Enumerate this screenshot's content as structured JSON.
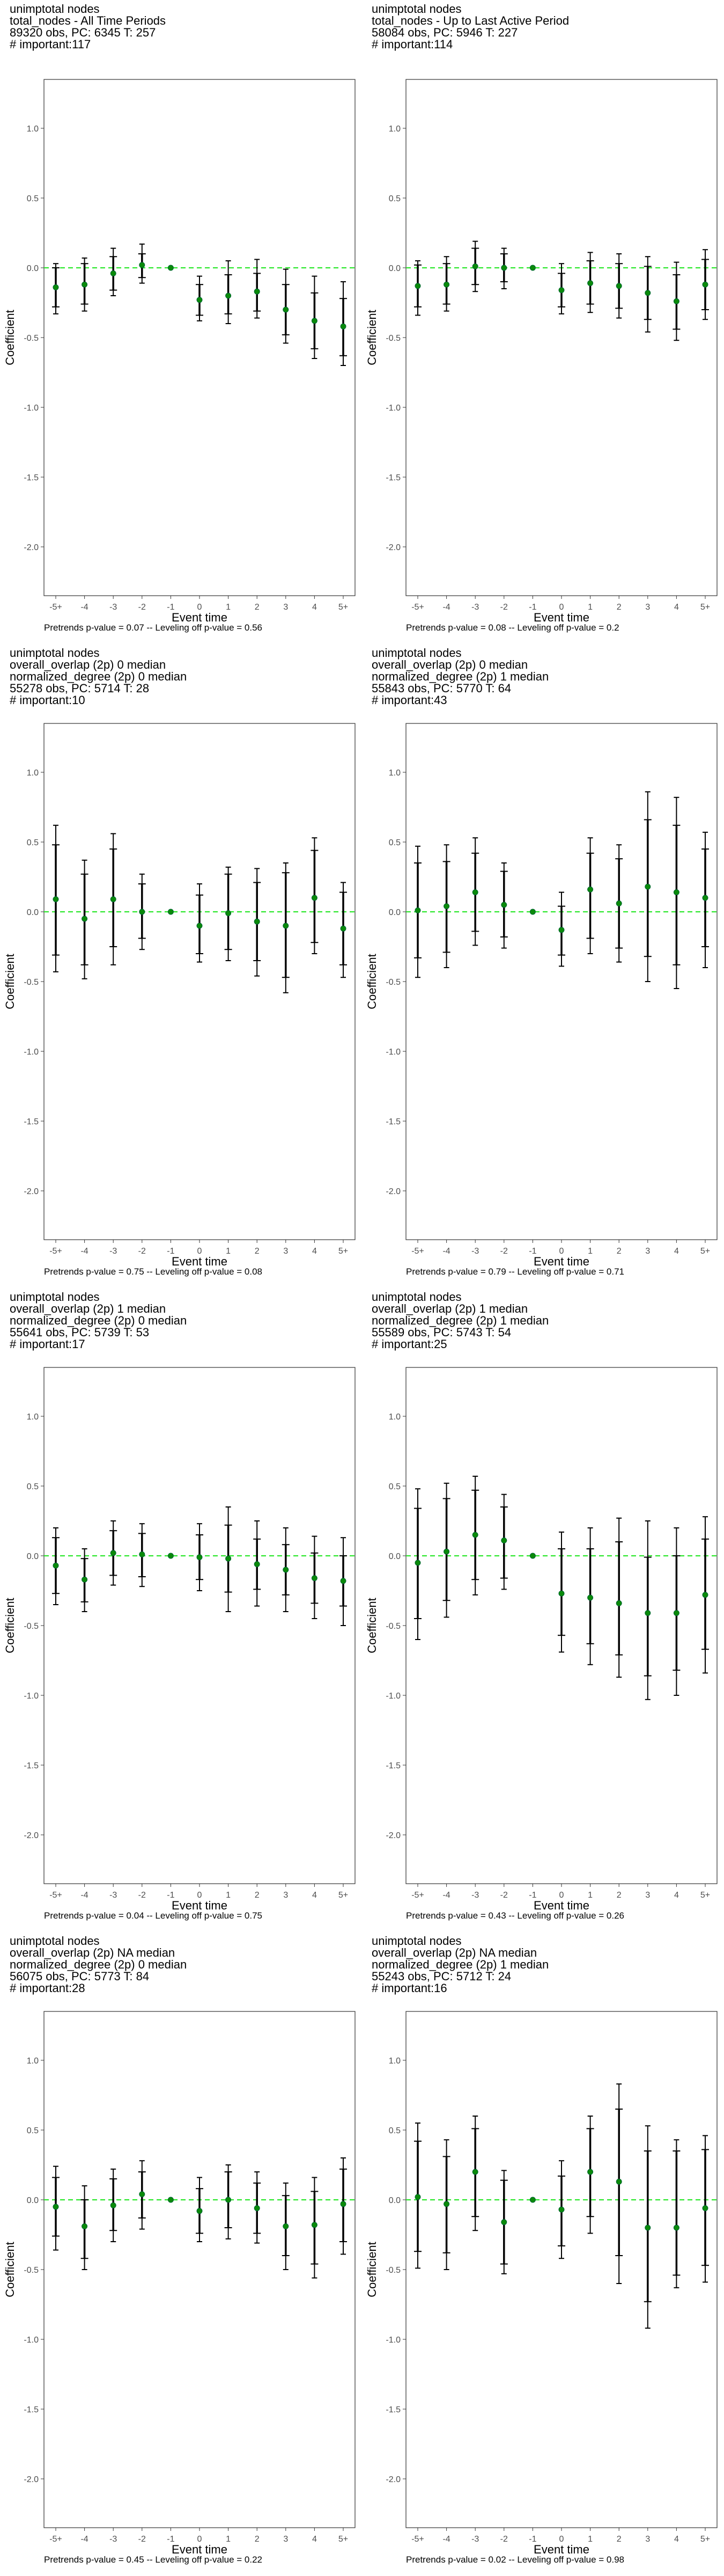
{
  "chart_data": [
    {
      "type": "scatter",
      "title": [
        "unimptotal nodes",
        "total_nodes - All Time Periods",
        "89320 obs, PC: 6345 T: 257",
        "# important:117"
      ],
      "xlabel": "Event time",
      "ylabel": "Coefficient",
      "categories": [
        "-5+",
        "-4",
        "-3",
        "-2",
        "-1",
        "0",
        "1",
        "2",
        "3",
        "4",
        "5+"
      ],
      "yticks": [
        "1.0",
        "0.5",
        "0.0",
        "-0.5",
        "-1.0",
        "-1.5",
        "-2.0"
      ],
      "ylim": [
        -2.35,
        1.35
      ],
      "points": [
        -0.14,
        -0.12,
        -0.04,
        0.02,
        0,
        -0.23,
        -0.2,
        -0.17,
        -0.3,
        -0.38,
        -0.42
      ],
      "inner": [
        [
          -0.28,
          0.0
        ],
        [
          -0.26,
          0.03
        ],
        [
          -0.16,
          0.08
        ],
        [
          -0.07,
          0.1
        ],
        [
          0,
          0
        ],
        [
          -0.34,
          -0.12
        ],
        [
          -0.33,
          -0.05
        ],
        [
          -0.31,
          -0.04
        ],
        [
          -0.48,
          -0.12
        ],
        [
          -0.58,
          -0.18
        ],
        [
          -0.63,
          -0.22
        ]
      ],
      "outer": [
        [
          -0.33,
          0.03
        ],
        [
          -0.31,
          0.07
        ],
        [
          -0.2,
          0.14
        ],
        [
          -0.11,
          0.17
        ],
        [
          0,
          0
        ],
        [
          -0.38,
          -0.06
        ],
        [
          -0.4,
          0.05
        ],
        [
          -0.36,
          0.06
        ],
        [
          -0.54,
          -0.01
        ],
        [
          -0.65,
          -0.06
        ],
        [
          -0.7,
          -0.1
        ]
      ],
      "footnote": "Pretrends p-value = 0.07 -- Leveling off p-value = 0.56"
    },
    {
      "type": "scatter",
      "title": [
        "unimptotal nodes",
        "total_nodes - Up to Last Active Period",
        "58084 obs, PC: 5946 T: 227",
        "# important:114"
      ],
      "xlabel": "Event time",
      "ylabel": "Coefficient",
      "categories": [
        "-5+",
        "-4",
        "-3",
        "-2",
        "-1",
        "0",
        "1",
        "2",
        "3",
        "4",
        "5+"
      ],
      "yticks": [
        "1.0",
        "0.5",
        "0.0",
        "-0.5",
        "-1.0",
        "-1.5",
        "-2.0"
      ],
      "ylim": [
        -2.35,
        1.35
      ],
      "points": [
        -0.13,
        -0.12,
        0.01,
        0.0,
        0,
        -0.16,
        -0.11,
        -0.13,
        -0.18,
        -0.24,
        -0.12
      ],
      "inner": [
        [
          -0.28,
          0.02
        ],
        [
          -0.26,
          0.03
        ],
        [
          -0.12,
          0.14
        ],
        [
          -0.1,
          0.1
        ],
        [
          0,
          0
        ],
        [
          -0.28,
          -0.04
        ],
        [
          -0.26,
          0.05
        ],
        [
          -0.29,
          0.03
        ],
        [
          -0.37,
          0.01
        ],
        [
          -0.44,
          -0.05
        ],
        [
          -0.3,
          0.06
        ]
      ],
      "outer": [
        [
          -0.34,
          0.05
        ],
        [
          -0.31,
          0.08
        ],
        [
          -0.17,
          0.19
        ],
        [
          -0.15,
          0.14
        ],
        [
          0,
          0
        ],
        [
          -0.33,
          0.03
        ],
        [
          -0.32,
          0.11
        ],
        [
          -0.36,
          0.1
        ],
        [
          -0.46,
          0.08
        ],
        [
          -0.52,
          0.04
        ],
        [
          -0.37,
          0.13
        ]
      ],
      "footnote": "Pretrends p-value = 0.08 -- Leveling off p-value = 0.2"
    },
    {
      "type": "scatter",
      "title": [
        "unimptotal nodes",
        "overall_overlap (2p) 0 median",
        "normalized_degree (2p) 0 median",
        "55278 obs, PC: 5714 T: 28",
        "# important:10"
      ],
      "xlabel": "Event time",
      "ylabel": "Coefficient",
      "categories": [
        "-5+",
        "-4",
        "-3",
        "-2",
        "-1",
        "0",
        "1",
        "2",
        "3",
        "4",
        "5+"
      ],
      "yticks": [
        "1.0",
        "0.5",
        "0.0",
        "-0.5",
        "-1.0",
        "-1.5",
        "-2.0"
      ],
      "ylim": [
        -2.35,
        1.35
      ],
      "points": [
        0.09,
        -0.05,
        0.09,
        0.0,
        0,
        -0.1,
        -0.01,
        -0.07,
        -0.1,
        0.1,
        -0.12
      ],
      "inner": [
        [
          -0.31,
          0.48
        ],
        [
          -0.38,
          0.27
        ],
        [
          -0.25,
          0.45
        ],
        [
          -0.19,
          0.2
        ],
        [
          0,
          0
        ],
        [
          -0.3,
          0.12
        ],
        [
          -0.27,
          0.27
        ],
        [
          -0.35,
          0.21
        ],
        [
          -0.47,
          0.28
        ],
        [
          -0.22,
          0.44
        ],
        [
          -0.38,
          0.14
        ]
      ],
      "outer": [
        [
          -0.43,
          0.62
        ],
        [
          -0.48,
          0.37
        ],
        [
          -0.38,
          0.56
        ],
        [
          -0.27,
          0.27
        ],
        [
          0,
          0
        ],
        [
          -0.36,
          0.2
        ],
        [
          -0.35,
          0.32
        ],
        [
          -0.46,
          0.31
        ],
        [
          -0.58,
          0.35
        ],
        [
          -0.3,
          0.53
        ],
        [
          -0.47,
          0.21
        ]
      ],
      "footnote": "Pretrends p-value = 0.75 -- Leveling off p-value = 0.08"
    },
    {
      "type": "scatter",
      "title": [
        "unimptotal nodes",
        "overall_overlap (2p) 0 median",
        "normalized_degree (2p) 1 median",
        "55843 obs, PC: 5770 T: 64",
        "# important:43"
      ],
      "xlabel": "Event time",
      "ylabel": "Coefficient",
      "categories": [
        "-5+",
        "-4",
        "-3",
        "-2",
        "-1",
        "0",
        "1",
        "2",
        "3",
        "4",
        "5+"
      ],
      "yticks": [
        "1.0",
        "0.5",
        "0.0",
        "-0.5",
        "-1.0",
        "-1.5",
        "-2.0"
      ],
      "ylim": [
        -2.35,
        1.35
      ],
      "points": [
        0.01,
        0.04,
        0.14,
        0.05,
        0,
        -0.13,
        0.16,
        0.06,
        0.18,
        0.14,
        0.1
      ],
      "inner": [
        [
          -0.33,
          0.35
        ],
        [
          -0.29,
          0.36
        ],
        [
          -0.14,
          0.42
        ],
        [
          -0.18,
          0.29
        ],
        [
          0,
          0
        ],
        [
          -0.31,
          0.04
        ],
        [
          -0.19,
          0.42
        ],
        [
          -0.26,
          0.38
        ],
        [
          -0.32,
          0.66
        ],
        [
          -0.38,
          0.62
        ],
        [
          -0.25,
          0.45
        ]
      ],
      "outer": [
        [
          -0.47,
          0.47
        ],
        [
          -0.4,
          0.48
        ],
        [
          -0.24,
          0.53
        ],
        [
          -0.26,
          0.35
        ],
        [
          0,
          0
        ],
        [
          -0.39,
          0.14
        ],
        [
          -0.3,
          0.53
        ],
        [
          -0.36,
          0.48
        ],
        [
          -0.5,
          0.86
        ],
        [
          -0.55,
          0.82
        ],
        [
          -0.4,
          0.57
        ]
      ],
      "footnote": "Pretrends p-value = 0.79 -- Leveling off p-value = 0.71"
    },
    {
      "type": "scatter",
      "title": [
        "unimptotal nodes",
        "overall_overlap (2p) 1 median",
        "normalized_degree (2p) 0 median",
        "55641 obs, PC: 5739 T: 53",
        "# important:17"
      ],
      "xlabel": "Event time",
      "ylabel": "Coefficient",
      "categories": [
        "-5+",
        "-4",
        "-3",
        "-2",
        "-1",
        "0",
        "1",
        "2",
        "3",
        "4",
        "5+"
      ],
      "yticks": [
        "1.0",
        "0.5",
        "0.0",
        "-0.5",
        "-1.0",
        "-1.5",
        "-2.0"
      ],
      "ylim": [
        -2.35,
        1.35
      ],
      "points": [
        -0.07,
        -0.17,
        0.02,
        0.01,
        0,
        -0.01,
        -0.02,
        -0.06,
        -0.1,
        -0.16,
        -0.18
      ],
      "inner": [
        [
          -0.27,
          0.13
        ],
        [
          -0.33,
          -0.02
        ],
        [
          -0.14,
          0.18
        ],
        [
          -0.15,
          0.16
        ],
        [
          0,
          0
        ],
        [
          -0.17,
          0.15
        ],
        [
          -0.26,
          0.22
        ],
        [
          -0.24,
          0.12
        ],
        [
          -0.28,
          0.08
        ],
        [
          -0.34,
          0.02
        ],
        [
          -0.36,
          0.0
        ]
      ],
      "outer": [
        [
          -0.35,
          0.2
        ],
        [
          -0.4,
          0.05
        ],
        [
          -0.21,
          0.25
        ],
        [
          -0.22,
          0.23
        ],
        [
          0,
          0
        ],
        [
          -0.25,
          0.23
        ],
        [
          -0.4,
          0.35
        ],
        [
          -0.36,
          0.25
        ],
        [
          -0.4,
          0.2
        ],
        [
          -0.45,
          0.14
        ],
        [
          -0.5,
          0.13
        ]
      ],
      "footnote": "Pretrends p-value = 0.04 -- Leveling off p-value = 0.75"
    },
    {
      "type": "scatter",
      "title": [
        "unimptotal nodes",
        "overall_overlap (2p) 1 median",
        "normalized_degree (2p) 1 median",
        "55589 obs, PC: 5743 T: 54",
        "# important:25"
      ],
      "xlabel": "Event time",
      "ylabel": "Coefficient",
      "categories": [
        "-5+",
        "-4",
        "-3",
        "-2",
        "-1",
        "0",
        "1",
        "2",
        "3",
        "4",
        "5+"
      ],
      "yticks": [
        "1.0",
        "0.5",
        "0.0",
        "-0.5",
        "-1.0",
        "-1.5",
        "-2.0"
      ],
      "ylim": [
        -2.35,
        1.35
      ],
      "points": [
        -0.05,
        0.03,
        0.15,
        0.11,
        0,
        -0.27,
        -0.3,
        -0.34,
        -0.41,
        -0.41,
        -0.28
      ],
      "inner": [
        [
          -0.45,
          0.34
        ],
        [
          -0.32,
          0.41
        ],
        [
          -0.17,
          0.47
        ],
        [
          -0.16,
          0.35
        ],
        [
          0,
          0
        ],
        [
          -0.57,
          0.05
        ],
        [
          -0.63,
          0.05
        ],
        [
          -0.71,
          0.1
        ],
        [
          -0.86,
          -0.01
        ],
        [
          -0.82,
          0.0
        ],
        [
          -0.67,
          0.12
        ]
      ],
      "outer": [
        [
          -0.6,
          0.48
        ],
        [
          -0.44,
          0.52
        ],
        [
          -0.28,
          0.57
        ],
        [
          -0.24,
          0.44
        ],
        [
          0,
          0
        ],
        [
          -0.69,
          0.17
        ],
        [
          -0.78,
          0.2
        ],
        [
          -0.87,
          0.27
        ],
        [
          -1.03,
          0.25
        ],
        [
          -1.0,
          0.2
        ],
        [
          -0.84,
          0.28
        ]
      ],
      "footnote": "Pretrends p-value = 0.43 -- Leveling off p-value = 0.26"
    },
    {
      "type": "scatter",
      "title": [
        "unimptotal nodes",
        "overall_overlap (2p) NA median",
        "normalized_degree (2p) 0 median",
        "56075 obs, PC: 5773 T: 84",
        "# important:28"
      ],
      "xlabel": "Event time",
      "ylabel": "Coefficient",
      "categories": [
        "-5+",
        "-4",
        "-3",
        "-2",
        "-1",
        "0",
        "1",
        "2",
        "3",
        "4",
        "5+"
      ],
      "yticks": [
        "1.0",
        "0.5",
        "0.0",
        "-0.5",
        "-1.0",
        "-1.5",
        "-2.0"
      ],
      "ylim": [
        -2.35,
        1.35
      ],
      "points": [
        -0.05,
        -0.19,
        -0.04,
        0.04,
        0,
        -0.08,
        0.0,
        -0.06,
        -0.19,
        -0.18,
        -0.03
      ],
      "inner": [
        [
          -0.26,
          0.16
        ],
        [
          -0.42,
          0.0
        ],
        [
          -0.22,
          0.15
        ],
        [
          -0.13,
          0.2
        ],
        [
          0,
          0
        ],
        [
          -0.24,
          0.08
        ],
        [
          -0.2,
          0.2
        ],
        [
          -0.24,
          0.12
        ],
        [
          -0.4,
          0.03
        ],
        [
          -0.46,
          0.06
        ],
        [
          -0.3,
          0.22
        ]
      ],
      "outer": [
        [
          -0.36,
          0.24
        ],
        [
          -0.5,
          0.1
        ],
        [
          -0.3,
          0.22
        ],
        [
          -0.21,
          0.28
        ],
        [
          0,
          0
        ],
        [
          -0.3,
          0.16
        ],
        [
          -0.28,
          0.25
        ],
        [
          -0.31,
          0.2
        ],
        [
          -0.5,
          0.12
        ],
        [
          -0.56,
          0.16
        ],
        [
          -0.39,
          0.3
        ]
      ],
      "footnote": "Pretrends p-value = 0.45 -- Leveling off p-value = 0.22"
    },
    {
      "type": "scatter",
      "title": [
        "unimptotal nodes",
        "overall_overlap (2p) NA median",
        "normalized_degree (2p) 1 median",
        "55243 obs, PC: 5712 T: 24",
        "# important:16"
      ],
      "xlabel": "Event time",
      "ylabel": "Coefficient",
      "categories": [
        "-5+",
        "-4",
        "-3",
        "-2",
        "-1",
        "0",
        "1",
        "2",
        "3",
        "4",
        "5+"
      ],
      "yticks": [
        "1.0",
        "0.5",
        "0.0",
        "-0.5",
        "-1.0",
        "-1.5",
        "-2.0"
      ],
      "ylim": [
        -2.35,
        1.35
      ],
      "points": [
        0.02,
        -0.03,
        0.2,
        -0.16,
        0,
        -0.07,
        0.2,
        0.13,
        -0.2,
        -0.2,
        -0.06
      ],
      "inner": [
        [
          -0.37,
          0.42
        ],
        [
          -0.38,
          0.31
        ],
        [
          -0.12,
          0.51
        ],
        [
          -0.46,
          0.14
        ],
        [
          0,
          0
        ],
        [
          -0.33,
          0.17
        ],
        [
          -0.12,
          0.51
        ],
        [
          -0.4,
          0.65
        ],
        [
          -0.73,
          0.35
        ],
        [
          -0.54,
          0.35
        ],
        [
          -0.47,
          0.36
        ]
      ],
      "outer": [
        [
          -0.49,
          0.55
        ],
        [
          -0.5,
          0.43
        ],
        [
          -0.22,
          0.6
        ],
        [
          -0.53,
          0.21
        ],
        [
          0,
          0
        ],
        [
          -0.42,
          0.28
        ],
        [
          -0.24,
          0.6
        ],
        [
          -0.6,
          0.83
        ],
        [
          -0.92,
          0.53
        ],
        [
          -0.63,
          0.43
        ],
        [
          -0.59,
          0.46
        ]
      ],
      "footnote": "Pretrends p-value = 0.02 -- Leveling off p-value = 0.98"
    }
  ]
}
